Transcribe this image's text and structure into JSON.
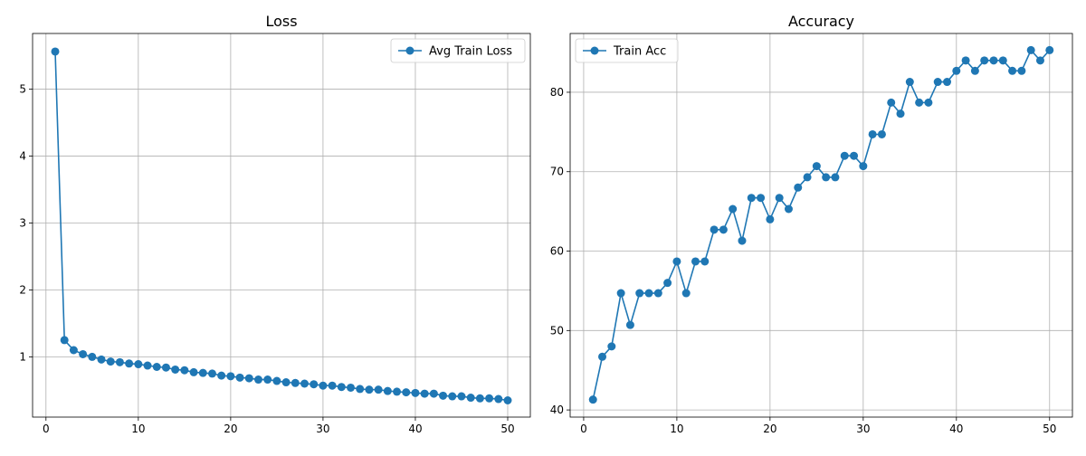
{
  "colors": {
    "series": "#1f77b4",
    "grid": "#b0b0b0",
    "axis": "#000000"
  },
  "chart_data": [
    {
      "type": "line",
      "title": "Loss",
      "xlabel": "",
      "ylabel": "",
      "xlim": [
        -1.45,
        52.45
      ],
      "ylim": [
        0.1,
        5.83
      ],
      "xticks": [
        0,
        10,
        20,
        30,
        40,
        50
      ],
      "yticks": [
        1,
        2,
        3,
        4,
        5
      ],
      "grid": true,
      "legend_position": "top-right",
      "marker": "circle",
      "x": [
        1,
        2,
        3,
        4,
        5,
        6,
        7,
        8,
        9,
        10,
        11,
        12,
        13,
        14,
        15,
        16,
        17,
        18,
        19,
        20,
        21,
        22,
        23,
        24,
        25,
        26,
        27,
        28,
        29,
        30,
        31,
        32,
        33,
        34,
        35,
        36,
        37,
        38,
        39,
        40,
        41,
        42,
        43,
        44,
        45,
        46,
        47,
        48,
        49,
        50
      ],
      "series": [
        {
          "name": "Avg Train Loss",
          "values": [
            5.56,
            1.25,
            1.1,
            1.04,
            1.0,
            0.96,
            0.93,
            0.92,
            0.9,
            0.89,
            0.87,
            0.85,
            0.84,
            0.81,
            0.8,
            0.77,
            0.76,
            0.75,
            0.72,
            0.71,
            0.69,
            0.68,
            0.66,
            0.66,
            0.64,
            0.62,
            0.61,
            0.6,
            0.59,
            0.57,
            0.57,
            0.55,
            0.54,
            0.52,
            0.51,
            0.51,
            0.49,
            0.48,
            0.47,
            0.46,
            0.45,
            0.45,
            0.42,
            0.41,
            0.41,
            0.39,
            0.38,
            0.38,
            0.37,
            0.35
          ]
        }
      ]
    },
    {
      "type": "line",
      "title": "Accuracy",
      "xlabel": "",
      "ylabel": "",
      "xlim": [
        -1.45,
        52.45
      ],
      "ylim": [
        39.1,
        87.4
      ],
      "xticks": [
        0,
        10,
        20,
        30,
        40,
        50
      ],
      "yticks": [
        40,
        50,
        60,
        70,
        80
      ],
      "grid": true,
      "legend_position": "top-left",
      "marker": "circle",
      "x": [
        1,
        2,
        3,
        4,
        5,
        6,
        7,
        8,
        9,
        10,
        11,
        12,
        13,
        14,
        15,
        16,
        17,
        18,
        19,
        20,
        21,
        22,
        23,
        24,
        25,
        26,
        27,
        28,
        29,
        30,
        31,
        32,
        33,
        34,
        35,
        36,
        37,
        38,
        39,
        40,
        41,
        42,
        43,
        44,
        45,
        46,
        47,
        48,
        49,
        50
      ],
      "series": [
        {
          "name": "Train Acc",
          "values": [
            41.3,
            46.7,
            48.0,
            54.7,
            50.7,
            54.7,
            54.7,
            54.7,
            56.0,
            58.7,
            54.7,
            58.7,
            58.7,
            62.7,
            62.7,
            65.3,
            61.3,
            66.7,
            66.7,
            64.0,
            66.7,
            65.3,
            68.0,
            69.3,
            70.7,
            69.3,
            69.3,
            72.0,
            72.0,
            70.7,
            74.7,
            74.7,
            78.7,
            77.3,
            81.3,
            78.7,
            78.7,
            81.3,
            81.3,
            82.7,
            84.0,
            82.7,
            84.0,
            84.0,
            84.0,
            82.7,
            82.7,
            85.3,
            84.0,
            85.3
          ]
        }
      ]
    }
  ]
}
